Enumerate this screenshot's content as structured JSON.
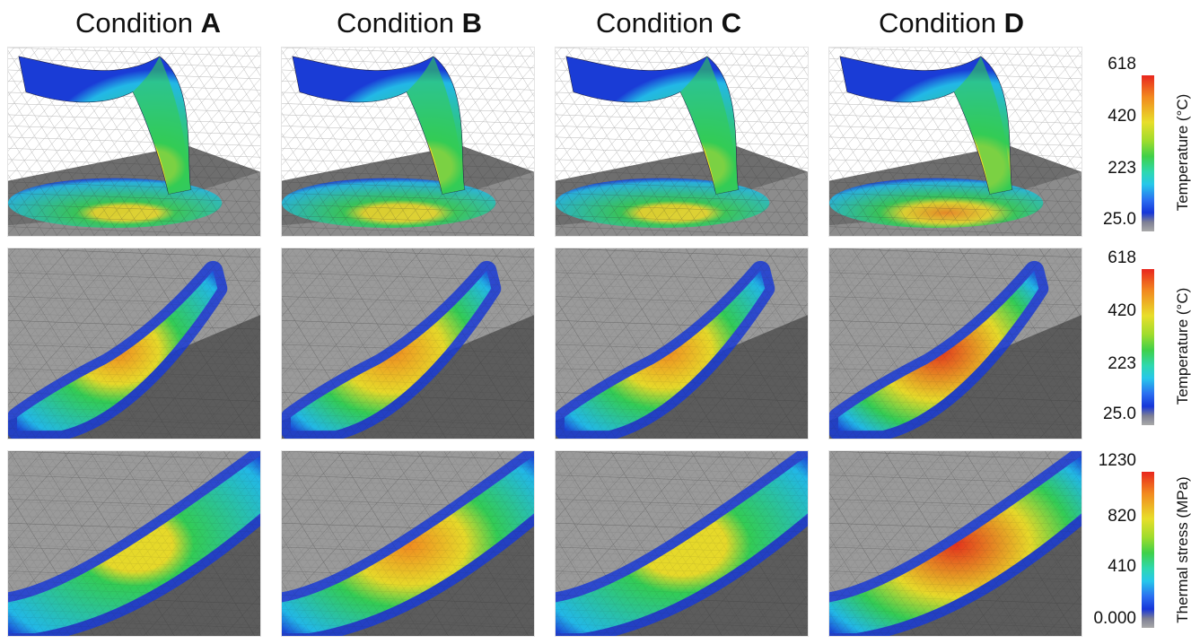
{
  "conditions": [
    {
      "prefix": "Condition ",
      "letter": "A"
    },
    {
      "prefix": "Condition ",
      "letter": "B"
    },
    {
      "prefix": "Condition ",
      "letter": "C"
    },
    {
      "prefix": "Condition ",
      "letter": "D"
    }
  ],
  "legends": [
    {
      "title": "Temperature (°C)",
      "ticks": [
        "618",
        "420",
        "223",
        "25.0"
      ]
    },
    {
      "title": "Temperature (°C)",
      "ticks": [
        "618",
        "420",
        "223",
        "25.0"
      ]
    },
    {
      "title": "Thermal stress (MPa)",
      "ticks": [
        "1230",
        "820",
        "410",
        "0.000"
      ]
    }
  ],
  "rows": [
    {
      "view": "chip-formation-3d",
      "peak_level": [
        0.55,
        0.62,
        0.58,
        0.75
      ]
    },
    {
      "view": "tool-rake-face-temperature",
      "peak_level": [
        0.62,
        0.78,
        0.7,
        0.92
      ]
    },
    {
      "view": "tool-rake-face-thermal-stress",
      "peak_level": [
        0.45,
        0.68,
        0.52,
        0.88
      ]
    }
  ],
  "colors": {
    "cold": "#1a3cd6",
    "cool": "#22b8e6",
    "mid": "#33cc55",
    "warm": "#e6d92a",
    "hot": "#e4321c",
    "mesh_gray": "#8a8a8a"
  }
}
